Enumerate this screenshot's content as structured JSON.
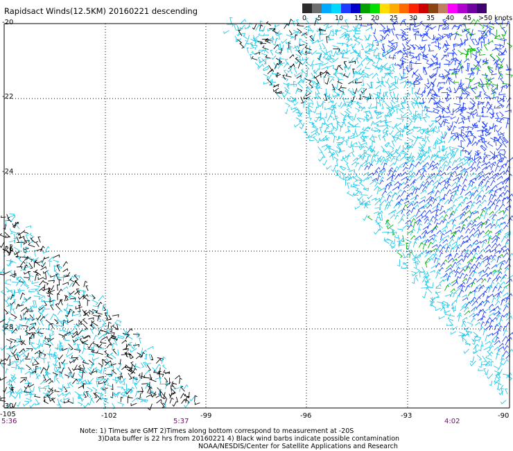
{
  "title": "Rapidsact Winds(12.5KM) 20160221 descending",
  "colorbar": {
    "colors": [
      "#2b2b2b",
      "#6e6e6e",
      "#00aaff",
      "#00d8ff",
      "#1e3cff",
      "#0000c8",
      "#00a000",
      "#00e000",
      "#ffdd00",
      "#ffaa00",
      "#ff6a00",
      "#ff2200",
      "#cc0000",
      "#8b4513",
      "#c08060",
      "#ff00ff",
      "#b000d0",
      "#7000a0",
      "#400070"
    ],
    "labels": [
      "0",
      "5",
      "10",
      "15",
      "20",
      "25",
      "30",
      "35",
      "40",
      "45",
      ">50 knots"
    ]
  },
  "y_ticks": [
    "-20",
    "-22",
    "-24",
    "-26",
    "-28",
    "-30"
  ],
  "x_ticks": [
    "-105",
    "-102",
    "-99",
    "-96",
    "-93",
    "-90"
  ],
  "time_labels": [
    "5:36",
    "5:37",
    "4:02"
  ],
  "notes": [
    "Note: 1) Times are GMT 2)Times along bottom correspond to measurement at -20S",
    "3)Data buffer is 22 hrs from 20160221 4) Black wind barbs indicate possible contamination",
    "NOAA/NESDIS/Center for Satellite Applications and Research"
  ],
  "barb_colors": {
    "contaminated": "#000000",
    "light": "#22c8e8",
    "medium": "#1a3cff",
    "strong": "#00b000"
  }
}
